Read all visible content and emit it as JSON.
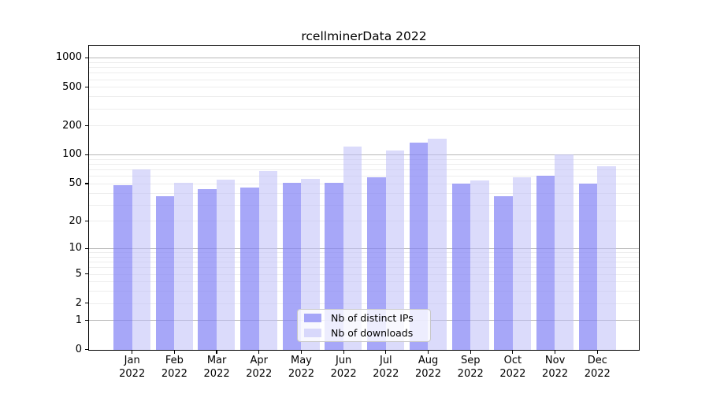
{
  "chart_data": {
    "type": "bar",
    "title": "rcellminerData 2022",
    "x": {
      "months": [
        "Jan",
        "Feb",
        "Mar",
        "Apr",
        "May",
        "Jun",
        "Jul",
        "Aug",
        "Sep",
        "Oct",
        "Nov",
        "Dec"
      ],
      "year": "2022"
    },
    "series": [
      {
        "name": "Nb of distinct IPs",
        "color": "rgba(130,130,245,0.70)",
        "values": [
          48,
          37,
          44,
          45,
          51,
          51,
          58,
          133,
          50,
          37,
          60,
          50
        ]
      },
      {
        "name": "Nb of downloads",
        "color": "rgba(190,190,248,0.55)",
        "values": [
          70,
          51,
          55,
          67,
          56,
          122,
          110,
          145,
          54,
          58,
          100,
          76
        ]
      }
    ],
    "y_axis": {
      "scale": "log1p",
      "tick_values": [
        0,
        1,
        2,
        5,
        10,
        20,
        50,
        100,
        200,
        500,
        1000
      ],
      "tick_labels": [
        "0",
        "1",
        "2",
        "5",
        "10",
        "20",
        "50",
        "100",
        "200",
        "500",
        "1000"
      ],
      "major_grid_values": [
        1,
        10,
        100,
        1000
      ],
      "minor_grid_values": [
        2,
        3,
        4,
        5,
        6,
        7,
        8,
        9,
        20,
        30,
        40,
        50,
        60,
        70,
        80,
        90,
        200,
        300,
        400,
        500,
        600,
        700,
        800,
        900
      ],
      "top_value": 1330
    },
    "legend_position": "lower-center-inside",
    "grid": true,
    "colors": {
      "major_grid": "#b8b8b8",
      "minor_grid": "#ededed",
      "axis": "#000000",
      "background": "#ffffff",
      "text": "#000000"
    }
  }
}
